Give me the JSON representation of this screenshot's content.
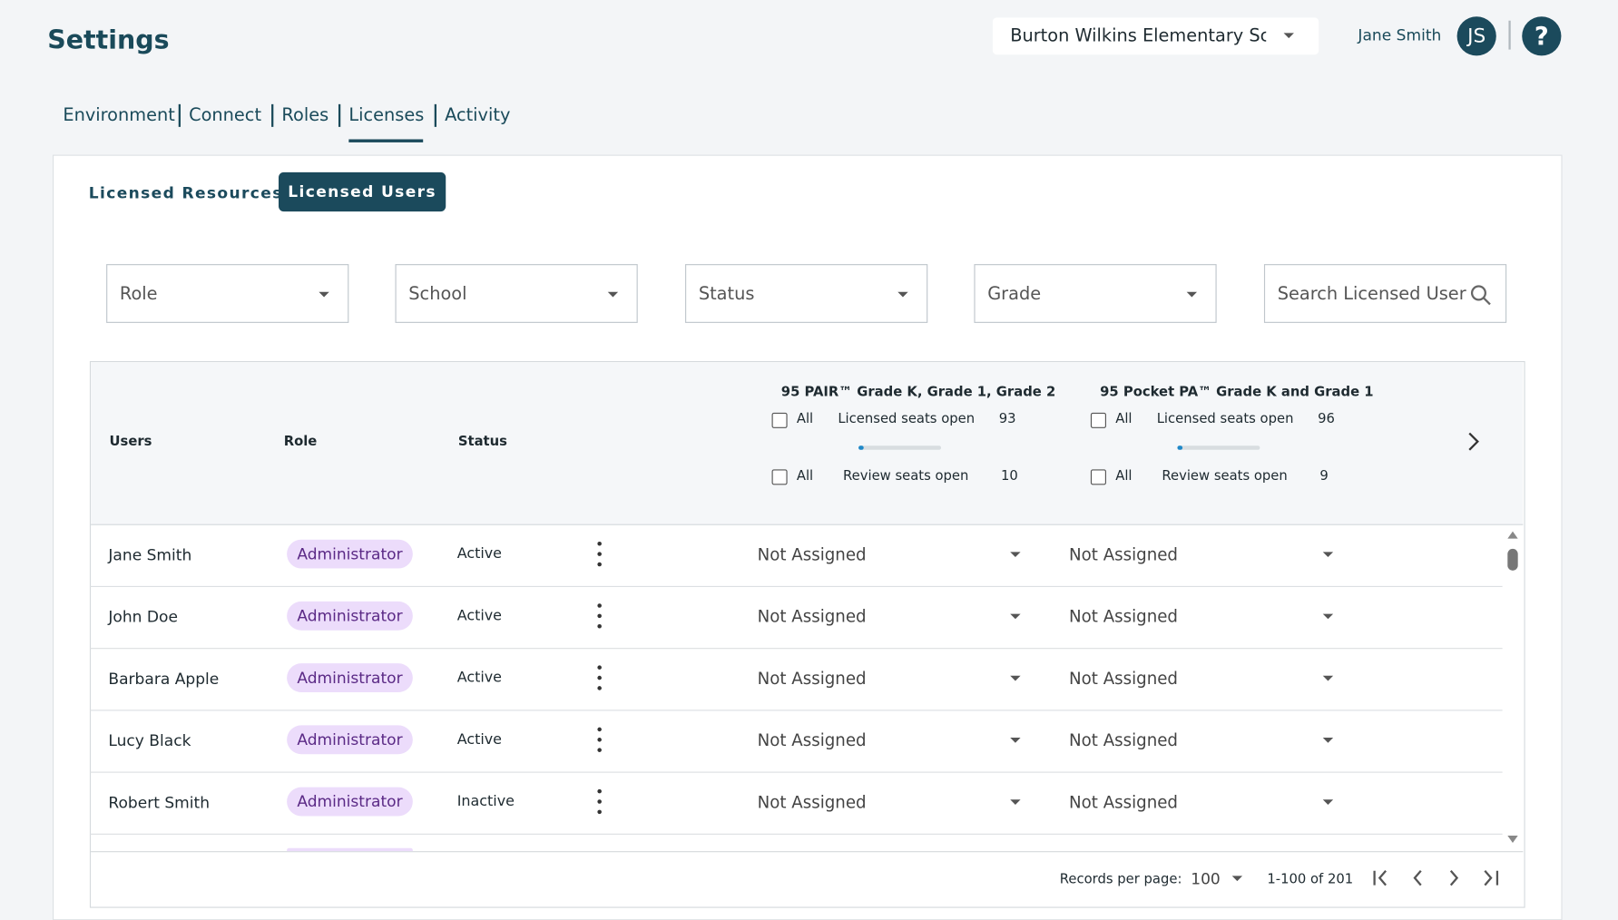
{
  "header": {
    "title": "Settings",
    "school": "Burton Wilkins Elementary Sch",
    "user_name": "Jane Smith",
    "initials": "JS",
    "help": "?"
  },
  "tabs": [
    "Environment",
    "Connect",
    "Roles",
    "Licenses",
    "Activity"
  ],
  "subtabs": [
    "Licensed Resources",
    "Licensed Users"
  ],
  "filters": [
    "Role",
    "School",
    "Status",
    "Grade",
    "Search Licensed User"
  ],
  "table": {
    "columns": [
      "Users",
      "Role",
      "Status"
    ],
    "licenses": [
      {
        "title": "95 PAIR™ Grade K, Grade 1, Grade 2",
        "all": "All",
        "licensed_label": "Licensed seats open",
        "licensed_open": 93,
        "review_label": "Review seats open",
        "review_open": 10
      },
      {
        "title": "95 Pocket PA™ Grade K and Grade 1",
        "all": "All",
        "licensed_label": "Licensed seats open",
        "licensed_open": 96,
        "review_label": "Review seats open",
        "review_open": 9
      }
    ],
    "rows": [
      [
        "Jane Smith",
        "Administrator",
        "Active",
        "Not Assigned",
        "Not Assigned"
      ],
      [
        "John Doe",
        "Administrator",
        "Active",
        "Not Assigned",
        "Not Assigned"
      ],
      [
        "Barbara Apple",
        "Administrator",
        "Active",
        "Not Assigned",
        "Not Assigned"
      ],
      [
        "Lucy Black",
        "Administrator",
        "Active",
        "Not Assigned",
        "Not Assigned"
      ],
      [
        "Robert Smith",
        "Administrator",
        "Inactive",
        "Not Assigned",
        "Not Assigned"
      ]
    ]
  },
  "pagination": {
    "label": "Records per page:",
    "per_page": "100",
    "range": "1-100 of 201"
  }
}
